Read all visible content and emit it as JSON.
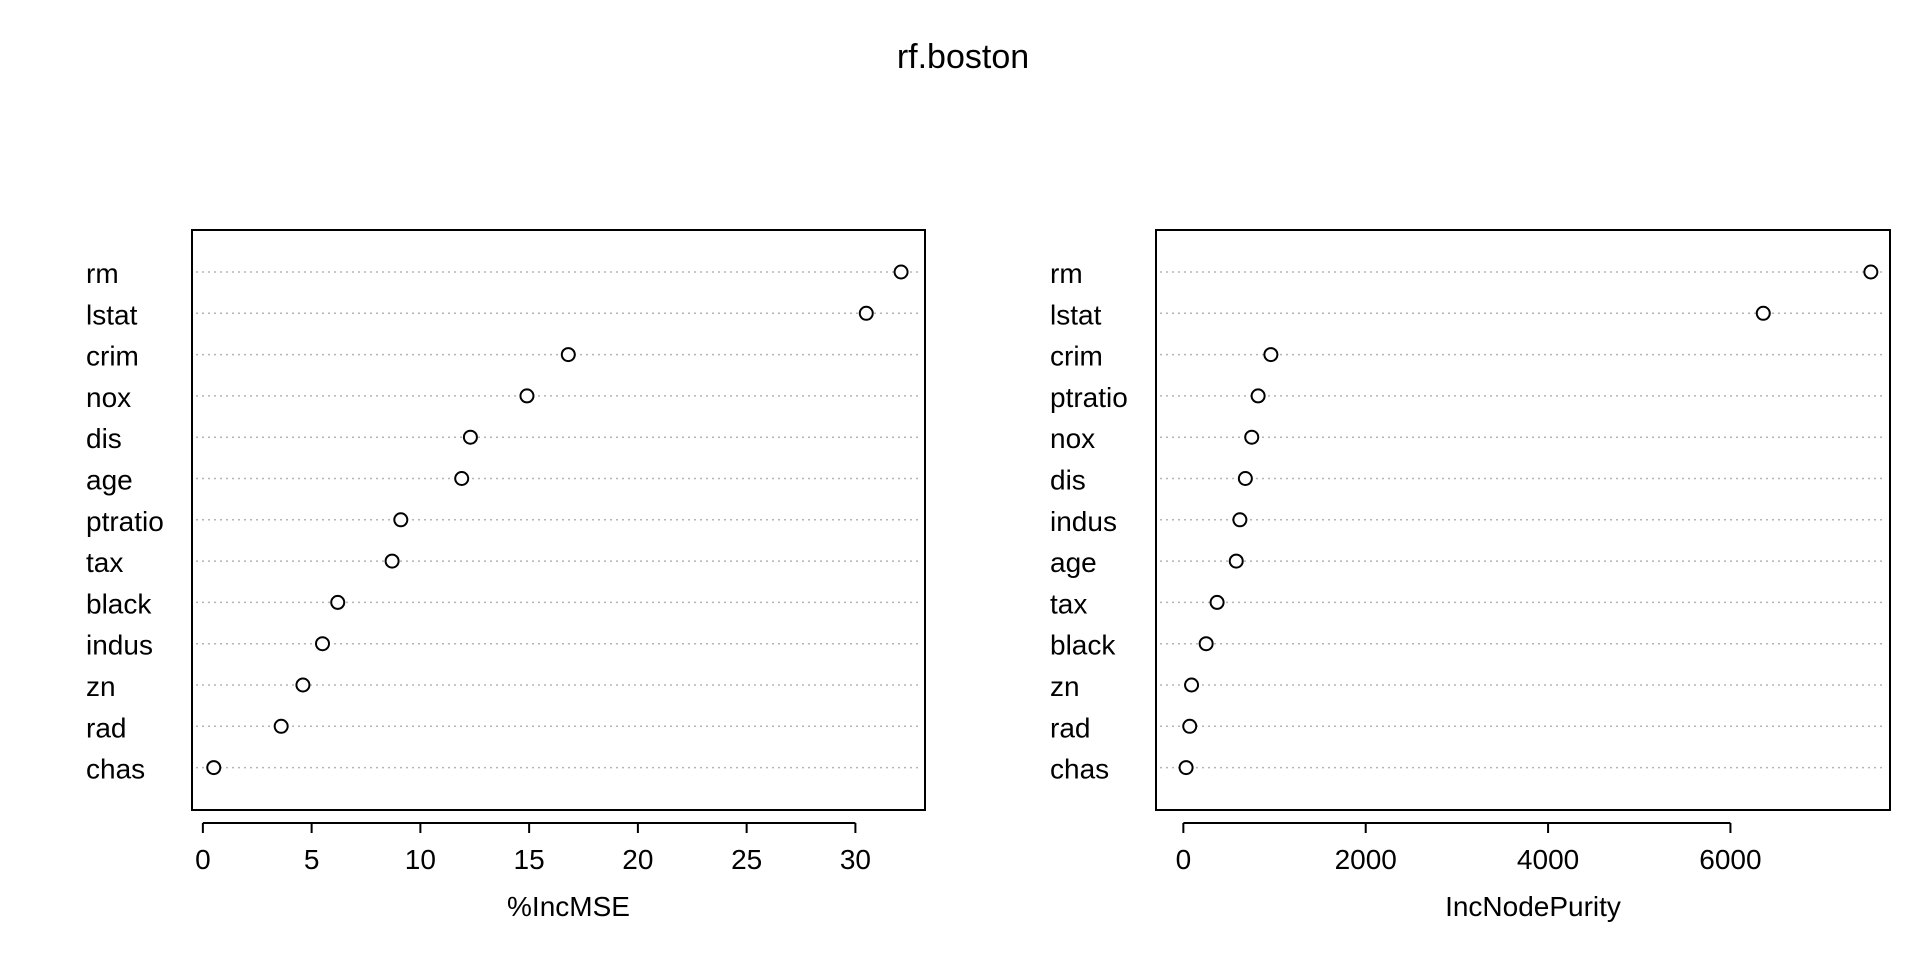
{
  "title": "rf.boston",
  "chart_data": [
    {
      "type": "scatter",
      "categories": [
        "rm",
        "lstat",
        "crim",
        "nox",
        "dis",
        "age",
        "ptratio",
        "tax",
        "black",
        "indus",
        "zn",
        "rad",
        "chas"
      ],
      "values": [
        32.1,
        30.5,
        16.8,
        14.9,
        12.3,
        11.9,
        9.1,
        8.7,
        6.2,
        5.5,
        4.6,
        3.6,
        0.5
      ],
      "xlabel": "%IncMSE",
      "ylabel": "",
      "xlim": [
        -0.5,
        33.2
      ],
      "xticks": [
        0,
        5,
        10,
        15,
        20,
        25,
        30
      ],
      "grid": true
    },
    {
      "type": "scatter",
      "categories": [
        "rm",
        "lstat",
        "crim",
        "ptratio",
        "nox",
        "dis",
        "indus",
        "age",
        "tax",
        "black",
        "zn",
        "rad",
        "chas"
      ],
      "values": [
        7540,
        6360,
        960,
        820,
        750,
        680,
        620,
        580,
        370,
        250,
        90,
        70,
        30
      ],
      "xlabel": "IncNodePurity",
      "ylabel": "",
      "xlim": [
        -300,
        7750
      ],
      "xticks": [
        0,
        2000,
        4000,
        6000
      ],
      "grid": true
    }
  ]
}
